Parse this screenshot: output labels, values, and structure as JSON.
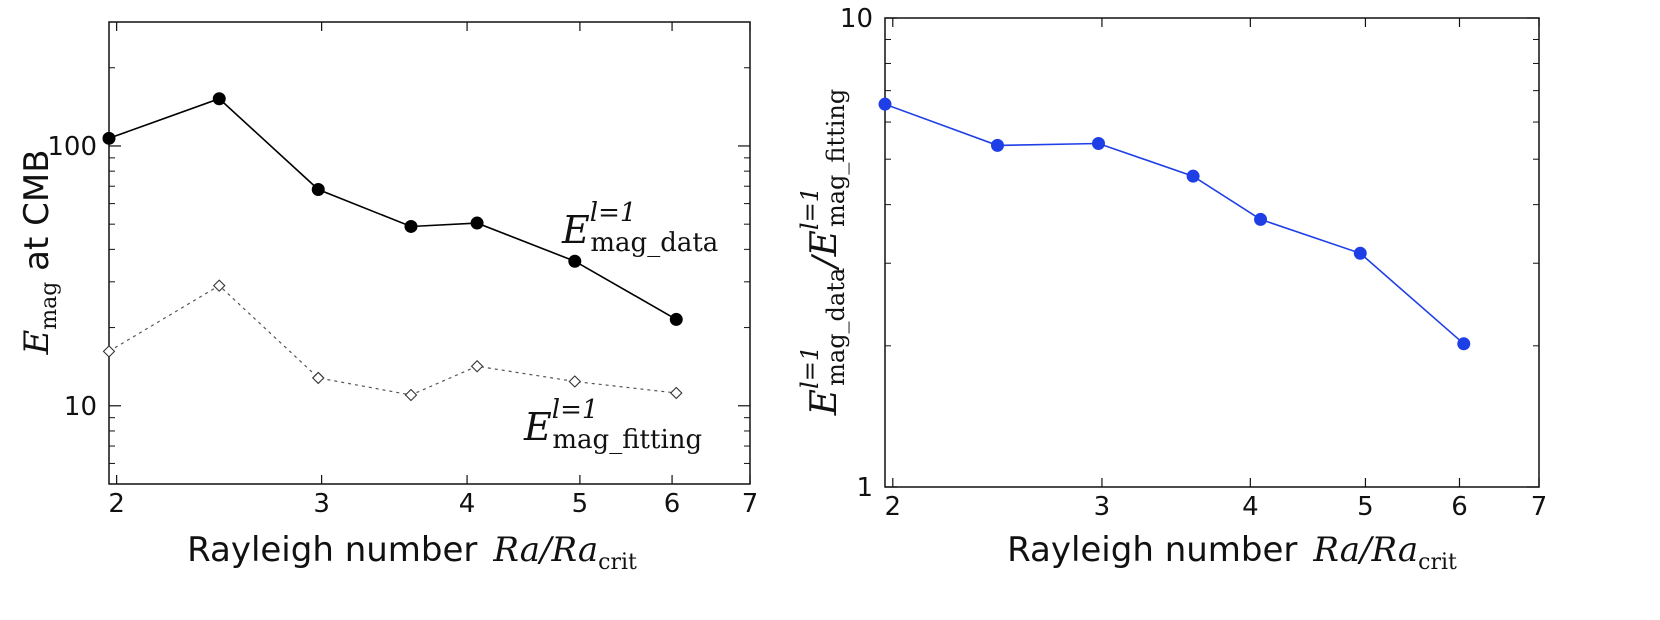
{
  "chart_data": [
    {
      "type": "line",
      "xscale": "log",
      "yscale": "log",
      "xlim": [
        1.97,
        7
      ],
      "ylim": [
        5,
        300
      ],
      "xticks": [
        "2",
        "3",
        "4",
        "5",
        "6",
        "7"
      ],
      "yticks": [
        "10",
        "100"
      ],
      "xlabel_text": "Rayleigh number",
      "xlabel_math": "Ra/Ra",
      "xlabel_sub": "crit",
      "ylabel_main": "E",
      "ylabel_sub": "mag",
      "ylabel_rest": " at CMB",
      "series": [
        {
          "name": "E_mag_data l=1",
          "label_main": "E",
          "label_sup": "l=1",
          "label_sub": "mag_data",
          "color": "#000000",
          "marker": "filled-circle",
          "line": "solid",
          "x": [
            1.97,
            2.45,
            2.98,
            3.58,
            4.08,
            4.95,
            6.05
          ],
          "y": [
            107,
            152,
            68,
            49,
            50.5,
            36,
            21.5
          ]
        },
        {
          "name": "E_mag_fitting l=1",
          "label_main": "E",
          "label_sup": "l=1",
          "label_sub": "mag_fitting",
          "color": "#555555",
          "marker": "open-diamond",
          "line": "dotted",
          "x": [
            1.97,
            2.45,
            2.98,
            3.58,
            4.08,
            4.95,
            6.05
          ],
          "y": [
            16.2,
            29,
            12.8,
            11,
            14.2,
            12.4,
            11.2
          ]
        }
      ]
    },
    {
      "type": "line",
      "xscale": "log",
      "yscale": "log",
      "xlim": [
        1.97,
        7
      ],
      "ylim": [
        1,
        10
      ],
      "xticks": [
        "2",
        "3",
        "4",
        "5",
        "6",
        "7"
      ],
      "yticks": [
        "1",
        "10"
      ],
      "xlabel_text": "Rayleigh number",
      "xlabel_math": "Ra/Ra",
      "xlabel_sub": "crit",
      "ylabel_num_sub": "mag_data",
      "ylabel_den_sub": "mag_fitting",
      "ylabel_sup": "l=1",
      "series": [
        {
          "name": "ratio",
          "color": "#1f3fe6",
          "marker": "filled-circle",
          "line": "solid",
          "x": [
            1.97,
            2.45,
            2.98,
            3.58,
            4.08,
            4.95,
            6.05
          ],
          "y": [
            6.55,
            5.35,
            5.4,
            4.6,
            3.72,
            3.15,
            2.02
          ]
        }
      ]
    }
  ]
}
